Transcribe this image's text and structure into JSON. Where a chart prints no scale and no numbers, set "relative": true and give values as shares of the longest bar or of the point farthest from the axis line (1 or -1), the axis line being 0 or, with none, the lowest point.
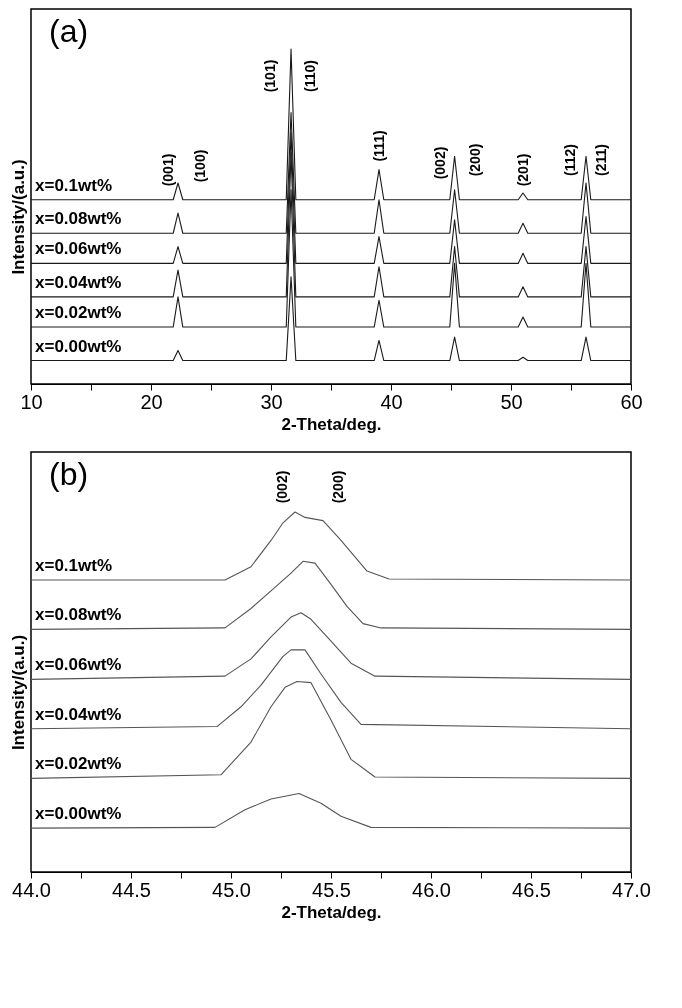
{
  "chart_data": [
    {
      "type": "line",
      "relative": true,
      "xlabel": "2-Theta/deg.",
      "ylabel": "Intensity/(a.u.)",
      "xlim": [
        10,
        60
      ],
      "xticks": [
        10,
        {
          "value": 15,
          "label": null
        },
        20,
        {
          "value": 25,
          "label": null
        },
        30,
        {
          "value": 35,
          "label": null
        },
        40,
        {
          "value": 45,
          "label": null
        },
        50,
        {
          "value": 55,
          "label": null
        },
        60
      ],
      "tick_labels": "x",
      "grid": false,
      "legend": false,
      "series": [
        {
          "name": "x=0.1wt%",
          "color": "#1a1a1a",
          "x": [
            10,
            21.85,
            22.25,
            22.65,
            31.27,
            31.67,
            32.07,
            38.6,
            39.0,
            39.4,
            44.9,
            45.3,
            45.7,
            50.6,
            51.0,
            51.4,
            55.85,
            56.25,
            56.65,
            60
          ],
          "values": [
            0.55,
            0.55,
            0.6,
            0.55,
            0.55,
            1.0,
            0.55,
            0.55,
            0.64,
            0.55,
            0.55,
            0.68,
            0.55,
            0.55,
            0.57,
            0.55,
            0.55,
            0.68,
            0.55,
            0.55
          ]
        },
        {
          "name": "x=0.08wt%",
          "color": "#1a1a1a",
          "x": [
            10,
            21.85,
            22.25,
            22.65,
            31.27,
            31.67,
            32.07,
            38.6,
            39.0,
            39.4,
            44.9,
            45.3,
            45.7,
            50.6,
            51.0,
            51.4,
            55.85,
            56.25,
            56.65,
            60
          ],
          "values": [
            0.45,
            0.45,
            0.51,
            0.45,
            0.45,
            0.81,
            0.45,
            0.45,
            0.55,
            0.45,
            0.45,
            0.58,
            0.45,
            0.45,
            0.48,
            0.45,
            0.45,
            0.6,
            0.45,
            0.45
          ]
        },
        {
          "name": "x=0.06wt%",
          "color": "#1a1a1a",
          "x": [
            10,
            21.85,
            22.25,
            22.65,
            31.27,
            31.67,
            32.07,
            38.6,
            39.0,
            39.4,
            44.9,
            45.3,
            45.7,
            50.6,
            51.0,
            51.4,
            55.85,
            56.25,
            56.65,
            60
          ],
          "values": [
            0.36,
            0.36,
            0.41,
            0.36,
            0.36,
            0.75,
            0.36,
            0.36,
            0.44,
            0.36,
            0.36,
            0.49,
            0.36,
            0.36,
            0.39,
            0.36,
            0.36,
            0.5,
            0.36,
            0.36
          ]
        },
        {
          "name": "x=0.04wt%",
          "color": "#1a1a1a",
          "x": [
            10,
            21.85,
            22.25,
            22.65,
            31.27,
            31.67,
            32.07,
            38.6,
            39.0,
            39.4,
            44.9,
            45.3,
            45.7,
            50.6,
            51.0,
            51.4,
            55.85,
            56.25,
            56.65,
            60
          ],
          "values": [
            0.26,
            0.26,
            0.34,
            0.26,
            0.26,
            0.69,
            0.26,
            0.26,
            0.35,
            0.26,
            0.26,
            0.41,
            0.26,
            0.26,
            0.29,
            0.26,
            0.26,
            0.41,
            0.26,
            0.26
          ]
        },
        {
          "name": "x=0.02wt%",
          "color": "#1a1a1a",
          "x": [
            10,
            21.85,
            22.25,
            22.65,
            31.27,
            31.67,
            32.07,
            38.6,
            39.0,
            39.4,
            44.9,
            45.3,
            45.7,
            50.6,
            51.0,
            51.4,
            55.85,
            56.25,
            56.65,
            60
          ],
          "values": [
            0.17,
            0.17,
            0.26,
            0.17,
            0.17,
            0.58,
            0.17,
            0.17,
            0.25,
            0.17,
            0.17,
            0.36,
            0.17,
            0.17,
            0.2,
            0.17,
            0.17,
            0.36,
            0.17,
            0.17
          ]
        },
        {
          "name": "x=0.00wt%",
          "color": "#1a1a1a",
          "x": [
            10,
            21.85,
            22.25,
            22.65,
            31.27,
            31.67,
            32.07,
            38.6,
            39.0,
            39.4,
            44.9,
            45.3,
            45.7,
            50.6,
            51.0,
            51.4,
            55.85,
            56.25,
            56.65,
            60
          ],
          "values": [
            0.07,
            0.07,
            0.1,
            0.07,
            0.07,
            0.32,
            0.07,
            0.07,
            0.13,
            0.07,
            0.07,
            0.14,
            0.07,
            0.07,
            0.08,
            0.07,
            0.07,
            0.14,
            0.07,
            0.07
          ]
        }
      ],
      "annotations": [
        "(a)",
        "(001)",
        "(100)",
        "(101)",
        "(110)",
        "(111)",
        "(002)",
        "(200)",
        "(201)",
        "(112)",
        "(211)"
      ]
    },
    {
      "type": "line",
      "relative": true,
      "xlabel": "2-Theta/deg.",
      "ylabel": "Intensity/(a.u.)",
      "xlim": [
        44,
        47
      ],
      "xticks": [
        {
          "value": 44,
          "label": "44.0"
        },
        {
          "value": 44.25,
          "label": null
        },
        {
          "value": 44.5,
          "label": "44.5"
        },
        {
          "value": 44.75,
          "label": null
        },
        {
          "value": 45,
          "label": "45.0"
        },
        {
          "value": 45.25,
          "label": null
        },
        {
          "value": 45.5,
          "label": "45.5"
        },
        {
          "value": 45.75,
          "label": null
        },
        {
          "value": 46,
          "label": "46.0"
        },
        {
          "value": 46.25,
          "label": null
        },
        {
          "value": 46.5,
          "label": "46.5"
        },
        {
          "value": 46.75,
          "label": null
        },
        {
          "value": 47,
          "label": "47.0"
        }
      ],
      "tick_labels": "x",
      "grid": false,
      "legend": false,
      "series": [
        {
          "name": "x=0.1wt%",
          "color": "#555555",
          "x": [
            44.0,
            44.97,
            45.1,
            45.2,
            45.26,
            45.32,
            45.37,
            45.46,
            45.55,
            45.68,
            45.79,
            47.0
          ],
          "values": [
            0.811,
            0.811,
            0.848,
            0.921,
            0.97,
            1.0,
            0.985,
            0.976,
            0.921,
            0.836,
            0.814,
            0.811
          ]
        },
        {
          "name": "x=0.08wt%",
          "color": "#555555",
          "x": [
            44.0,
            44.97,
            45.1,
            45.2,
            45.3,
            45.36,
            45.42,
            45.5,
            45.58,
            45.66,
            45.75,
            47.0
          ],
          "values": [
            0.674,
            0.678,
            0.732,
            0.781,
            0.83,
            0.863,
            0.858,
            0.799,
            0.738,
            0.69,
            0.678,
            0.674
          ]
        },
        {
          "name": "x=0.06wt%",
          "color": "#555555",
          "x": [
            44.0,
            44.97,
            45.1,
            45.2,
            45.3,
            45.35,
            45.4,
            45.5,
            45.6,
            45.72,
            47.0
          ],
          "values": [
            0.535,
            0.544,
            0.592,
            0.653,
            0.708,
            0.72,
            0.702,
            0.641,
            0.58,
            0.544,
            0.535
          ]
        },
        {
          "name": "x=0.04wt%",
          "color": "#555555",
          "x": [
            44.0,
            44.93,
            45.05,
            45.15,
            45.26,
            45.3,
            45.37,
            45.45,
            45.55,
            45.65,
            47.0
          ],
          "values": [
            0.398,
            0.404,
            0.459,
            0.519,
            0.599,
            0.617,
            0.617,
            0.55,
            0.471,
            0.41,
            0.398
          ]
        },
        {
          "name": "x=0.02wt%",
          "color": "#555555",
          "x": [
            44.0,
            44.95,
            45.1,
            45.2,
            45.27,
            45.33,
            45.4,
            45.5,
            45.6,
            45.72,
            47.0
          ],
          "values": [
            0.26,
            0.27,
            0.361,
            0.459,
            0.513,
            0.529,
            0.526,
            0.422,
            0.313,
            0.264,
            0.26
          ]
        },
        {
          "name": "x=0.00wt%",
          "color": "#555555",
          "x": [
            44.0,
            44.92,
            45.07,
            45.2,
            45.34,
            45.45,
            45.55,
            45.7,
            47.0
          ],
          "values": [
            0.122,
            0.124,
            0.173,
            0.203,
            0.218,
            0.191,
            0.155,
            0.124,
            0.122
          ]
        }
      ],
      "annotations": [
        "(b)",
        "(002)",
        "(200)"
      ]
    }
  ]
}
